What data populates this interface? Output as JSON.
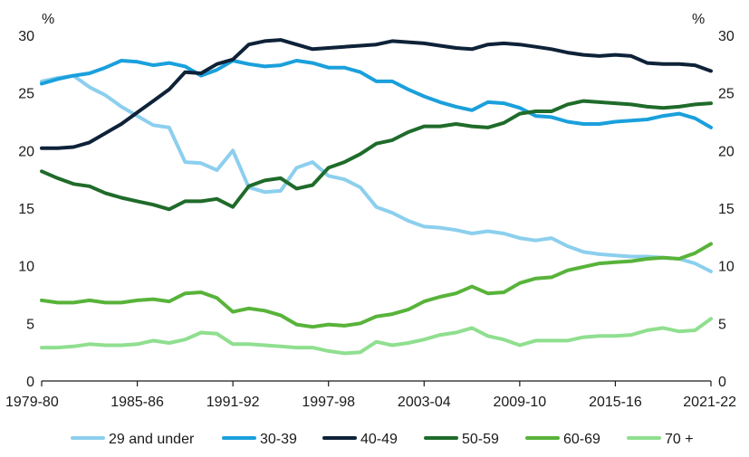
{
  "chart_data": {
    "type": "line",
    "title": "",
    "xlabel": "",
    "ylabel_left": "%",
    "ylabel_right": "%",
    "ylim": [
      0,
      30
    ],
    "yticks": [
      0,
      5,
      10,
      15,
      20,
      25,
      30
    ],
    "x_tick_labels": [
      "1979-80",
      "1985-86",
      "1991-92",
      "1997-98",
      "2003-04",
      "2009-10",
      "2015-16",
      "2021-22"
    ],
    "x_tick_indices": [
      0,
      6,
      12,
      18,
      24,
      30,
      36,
      42
    ],
    "grid": false,
    "legend_position": "bottom",
    "x": [
      "1979-80",
      "1980-81",
      "1981-82",
      "1982-83",
      "1983-84",
      "1984-85",
      "1985-86",
      "1986-87",
      "1987-88",
      "1988-89",
      "1989-90",
      "1990-91",
      "1991-92",
      "1992-93",
      "1993-94",
      "1994-95",
      "1995-96",
      "1996-97",
      "1997-98",
      "1998-99",
      "1999-00",
      "2000-01",
      "2001-02",
      "2002-03",
      "2003-04",
      "2004-05",
      "2005-06",
      "2006-07",
      "2007-08",
      "2008-09",
      "2009-10",
      "2010-11",
      "2011-12",
      "2012-13",
      "2013-14",
      "2014-15",
      "2015-16",
      "2016-17",
      "2017-18",
      "2018-19",
      "2019-20",
      "2020-21",
      "2021-22"
    ],
    "series": [
      {
        "name": "29 and under",
        "color": "#8ccfee",
        "values": [
          26.0,
          26.3,
          26.5,
          25.5,
          24.8,
          23.8,
          23.0,
          22.2,
          22.0,
          19.0,
          18.9,
          18.3,
          20.0,
          16.8,
          16.4,
          16.5,
          18.5,
          19.0,
          17.8,
          17.5,
          16.8,
          15.1,
          14.6,
          13.9,
          13.4,
          13.3,
          13.1,
          12.8,
          13.0,
          12.8,
          12.4,
          12.2,
          12.4,
          11.7,
          11.2,
          11.0,
          10.9,
          10.8,
          10.8,
          10.7,
          10.6,
          10.2,
          9.5
        ]
      },
      {
        "name": "30-39",
        "color": "#1aa0dc",
        "values": [
          25.8,
          26.2,
          26.5,
          26.7,
          27.2,
          27.8,
          27.7,
          27.4,
          27.6,
          27.3,
          26.5,
          27.0,
          27.8,
          27.5,
          27.3,
          27.4,
          27.8,
          27.6,
          27.2,
          27.2,
          26.8,
          26.0,
          26.0,
          25.3,
          24.7,
          24.2,
          23.8,
          23.5,
          24.2,
          24.1,
          23.7,
          23.0,
          22.9,
          22.5,
          22.3,
          22.3,
          22.5,
          22.6,
          22.7,
          23.0,
          23.2,
          22.8,
          22.0
        ]
      },
      {
        "name": "40-49",
        "color": "#0e2238",
        "values": [
          20.2,
          20.2,
          20.3,
          20.7,
          21.5,
          22.3,
          23.3,
          24.3,
          25.3,
          26.8,
          26.7,
          27.5,
          27.9,
          29.2,
          29.5,
          29.6,
          29.2,
          28.8,
          28.9,
          29.0,
          29.1,
          29.2,
          29.5,
          29.4,
          29.3,
          29.1,
          28.9,
          28.8,
          29.2,
          29.3,
          29.2,
          29.0,
          28.8,
          28.5,
          28.3,
          28.2,
          28.3,
          28.2,
          27.6,
          27.5,
          27.5,
          27.4,
          26.9
        ]
      },
      {
        "name": "50-59",
        "color": "#1f6b2a",
        "values": [
          18.2,
          17.6,
          17.1,
          16.9,
          16.3,
          15.9,
          15.6,
          15.3,
          14.9,
          15.6,
          15.6,
          15.8,
          15.1,
          16.9,
          17.4,
          17.6,
          16.7,
          17.0,
          18.5,
          19.0,
          19.7,
          20.6,
          20.9,
          21.6,
          22.1,
          22.1,
          22.3,
          22.1,
          22.0,
          22.4,
          23.2,
          23.4,
          23.4,
          24.0,
          24.3,
          24.2,
          24.1,
          24.0,
          23.8,
          23.7,
          23.8,
          24.0,
          24.1
        ]
      },
      {
        "name": "60-69",
        "color": "#58b33a",
        "values": [
          7.0,
          6.8,
          6.8,
          7.0,
          6.8,
          6.8,
          7.0,
          7.1,
          6.9,
          7.6,
          7.7,
          7.2,
          6.0,
          6.3,
          6.1,
          5.7,
          4.9,
          4.7,
          4.9,
          4.8,
          5.0,
          5.6,
          5.8,
          6.2,
          6.9,
          7.3,
          7.6,
          8.2,
          7.6,
          7.7,
          8.5,
          8.9,
          9.0,
          9.6,
          9.9,
          10.2,
          10.3,
          10.4,
          10.6,
          10.7,
          10.6,
          11.1,
          11.9
        ]
      },
      {
        "name": "70 +",
        "color": "#8fdf8f",
        "values": [
          2.9,
          2.9,
          3.0,
          3.2,
          3.1,
          3.1,
          3.2,
          3.5,
          3.3,
          3.6,
          4.2,
          4.1,
          3.2,
          3.2,
          3.1,
          3.0,
          2.9,
          2.9,
          2.6,
          2.4,
          2.5,
          3.4,
          3.1,
          3.3,
          3.6,
          4.0,
          4.2,
          4.6,
          3.9,
          3.6,
          3.1,
          3.5,
          3.5,
          3.5,
          3.8,
          3.9,
          3.9,
          4.0,
          4.4,
          4.6,
          4.3,
          4.4,
          5.4
        ]
      }
    ]
  }
}
